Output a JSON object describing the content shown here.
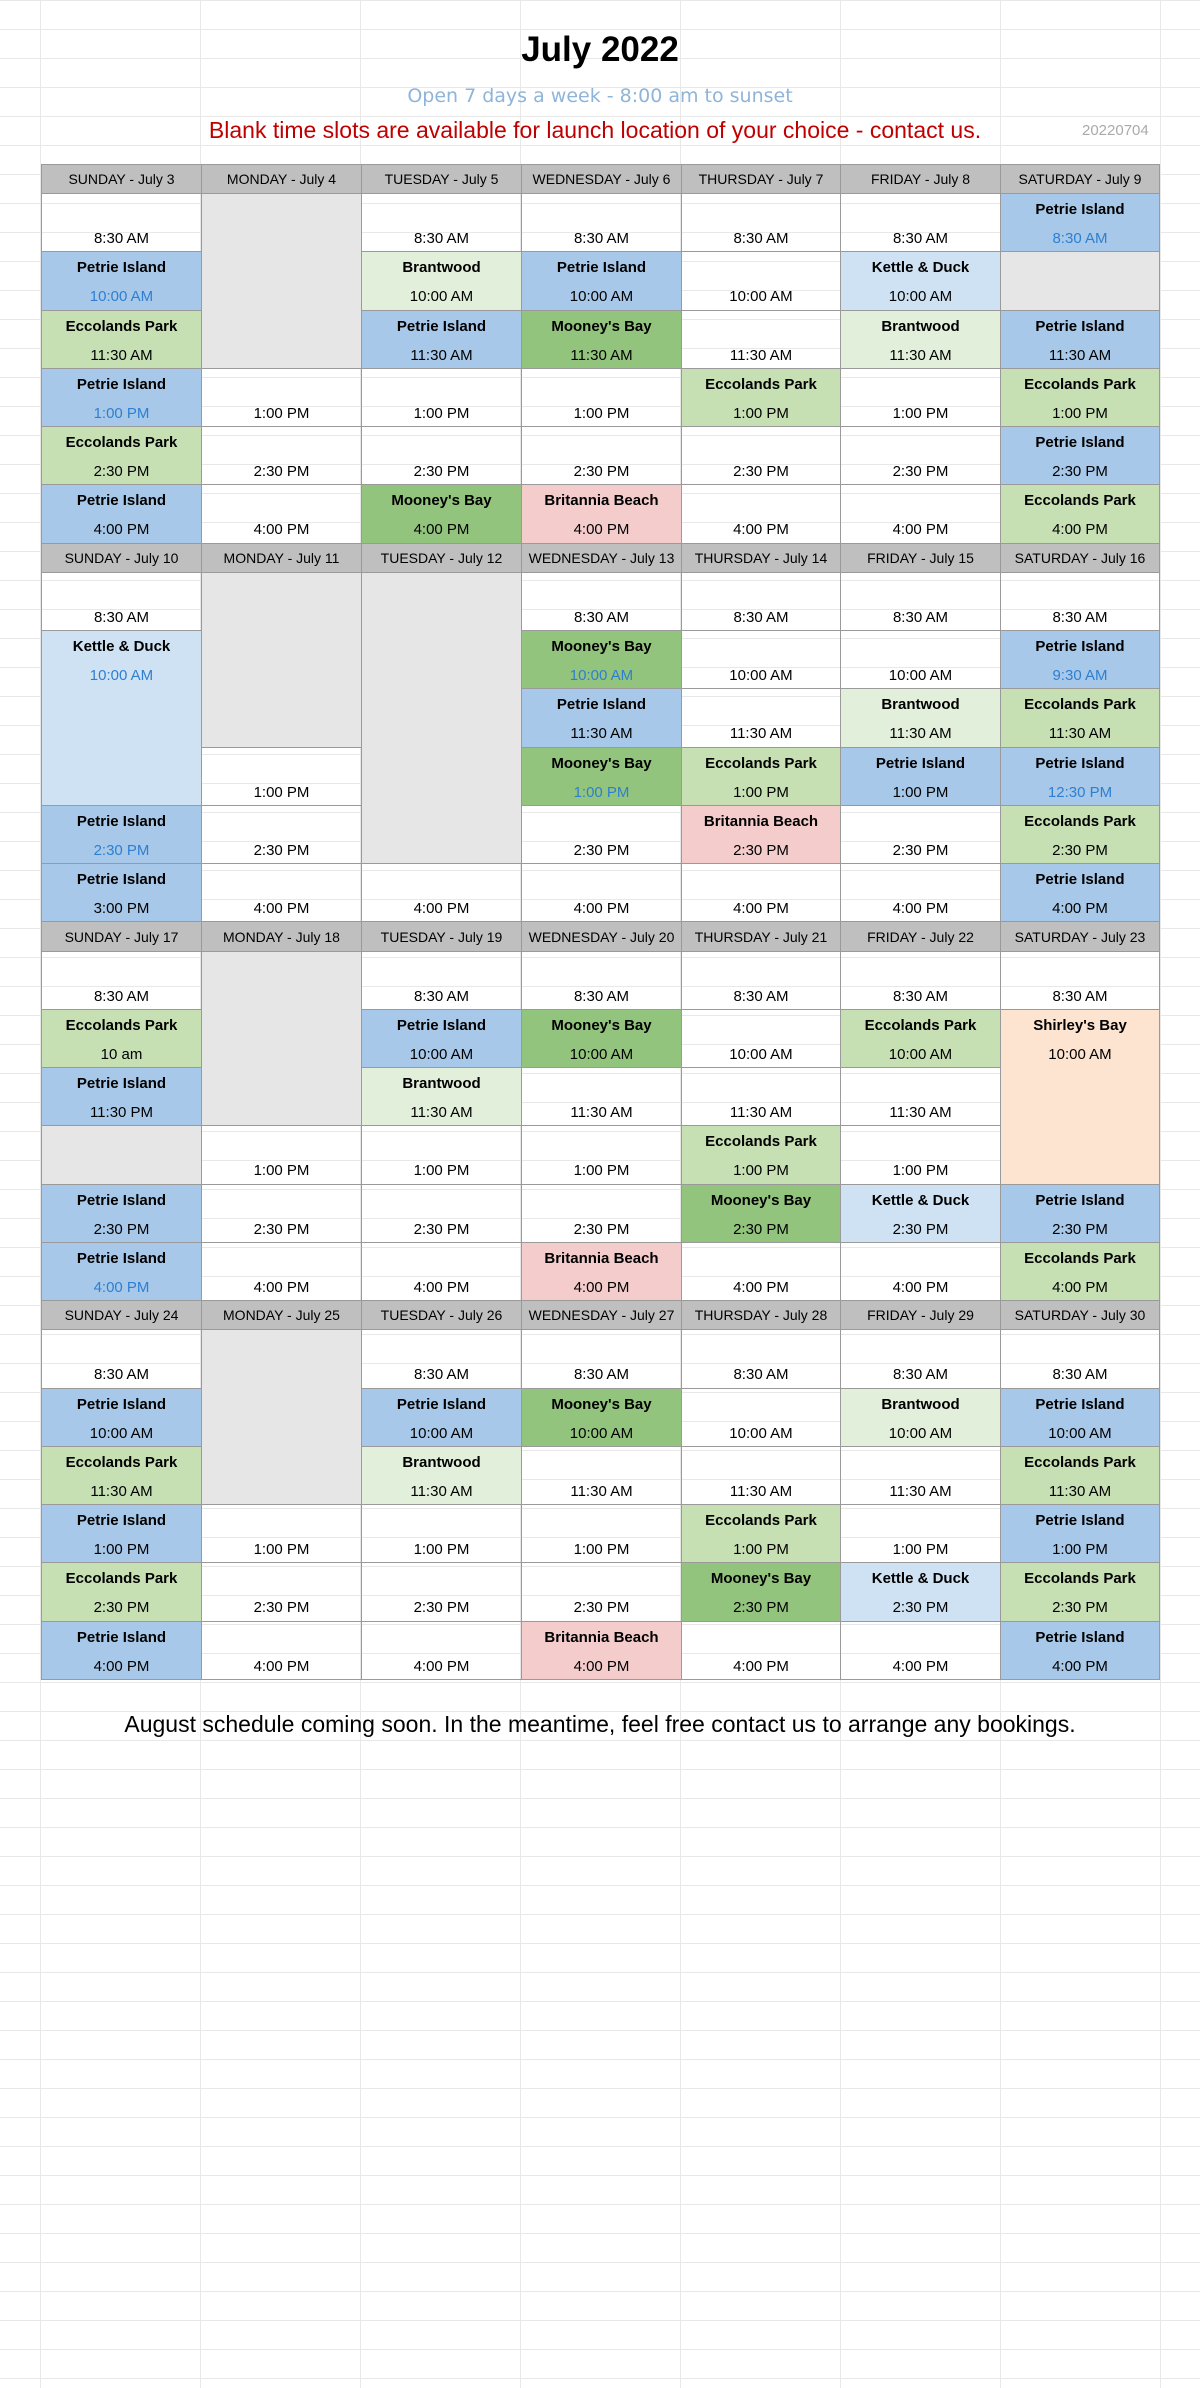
{
  "title": "July 2022",
  "subtitle": "Open  7 days a week - 8:00 am to sunset",
  "notice": "Blank time slots are available for launch location of your choice - contact us.",
  "code": "20220704",
  "footer": "August schedule coming soon. In the meantime, feel free contact us to arrange any bookings.",
  "legend_colors": {
    "Petrie Island": "#a7c8e8",
    "Eccolands Park": "#c6e0b4",
    "Brantwood": "#e2efda",
    "Mooney's Bay": "#93c47d",
    "Kettle & Duck": "#cfe2f3",
    "Britannia Beach": "#f4cccc",
    "Shirley's Bay": "#fde4d0",
    "blocked": "#e6e6e6",
    "highlight_time": "#2e7fd1"
  },
  "weeks": [
    {
      "headers": [
        "SUNDAY - July 3",
        "MONDAY - July 4",
        "TUESDAY - July 5",
        "WEDNESDAY - July 6",
        "THURSDAY - July 7",
        "FRIDAY - July 8",
        "SATURDAY - July 9"
      ],
      "rows": [
        [
          {
            "time": "8:30 AM"
          },
          {
            "blank": true,
            "rs": 3
          },
          {
            "time": "8:30 AM"
          },
          {
            "time": "8:30 AM"
          },
          {
            "time": "8:30 AM"
          },
          {
            "time": "8:30 AM"
          },
          {
            "loc": "Petrie Island",
            "time": "8:30 AM",
            "c": "pi",
            "hl": true
          }
        ],
        [
          {
            "loc": "Petrie Island",
            "time": "10:00 AM",
            "c": "pi",
            "hl": true
          },
          {
            "loc": "Brantwood",
            "time": "10:00 AM",
            "c": "bw"
          },
          {
            "loc": "Petrie Island",
            "time": "10:00 AM",
            "c": "pi"
          },
          {
            "time": "10:00 AM"
          },
          {
            "loc": "Kettle & Duck",
            "time": "10:00 AM",
            "c": "kd"
          },
          {
            "blank": true
          }
        ],
        [
          {
            "loc": "Eccolands Park",
            "time": "11:30 AM",
            "c": "ep"
          },
          {
            "loc": "Petrie Island",
            "time": "11:30 AM",
            "c": "pi"
          },
          {
            "loc": "Mooney's Bay",
            "time": "11:30 AM",
            "c": "mb"
          },
          {
            "time": "11:30 AM"
          },
          {
            "loc": "Brantwood",
            "time": "11:30 AM",
            "c": "bw"
          },
          {
            "loc": "Petrie Island",
            "time": "11:30 AM",
            "c": "pi"
          }
        ],
        [
          {
            "loc": "Petrie Island",
            "time": "1:00 PM",
            "c": "pi",
            "hl": true
          },
          {
            "time": "1:00 PM"
          },
          {
            "time": "1:00 PM"
          },
          {
            "time": "1:00 PM"
          },
          {
            "loc": "Eccolands Park",
            "time": "1:00 PM",
            "c": "ep"
          },
          {
            "time": "1:00 PM"
          },
          {
            "loc": "Eccolands Park",
            "time": "1:00 PM",
            "c": "ep"
          }
        ],
        [
          {
            "loc": "Eccolands Park",
            "time": "2:30 PM",
            "c": "ep"
          },
          {
            "time": "2:30 PM"
          },
          {
            "time": "2:30 PM"
          },
          {
            "time": "2:30 PM"
          },
          {
            "time": "2:30 PM"
          },
          {
            "time": "2:30 PM"
          },
          {
            "loc": "Petrie Island",
            "time": "2:30 PM",
            "c": "pi"
          }
        ],
        [
          {
            "loc": "Petrie Island",
            "time": "4:00 PM",
            "c": "pi"
          },
          {
            "time": "4:00 PM"
          },
          {
            "loc": "Mooney's Bay",
            "time": "4:00 PM",
            "c": "mb"
          },
          {
            "loc": "Britannia Beach",
            "time": "4:00 PM",
            "c": "bb"
          },
          {
            "time": "4:00 PM"
          },
          {
            "time": "4:00 PM"
          },
          {
            "loc": "Eccolands Park",
            "time": "4:00 PM",
            "c": "ep"
          }
        ]
      ]
    },
    {
      "headers": [
        "SUNDAY - July 10",
        "MONDAY - July 11",
        "TUESDAY - July 12",
        "WEDNESDAY - July 13",
        "THURSDAY - July 14",
        "FRIDAY - July 15",
        "SATURDAY - July 16"
      ],
      "rows": [
        [
          {
            "time": "8:30 AM"
          },
          {
            "blank": true,
            "rs": 3
          },
          {
            "blank": true,
            "rs": 5
          },
          {
            "time": "8:30 AM"
          },
          {
            "time": "8:30 AM"
          },
          {
            "time": "8:30 AM"
          },
          {
            "time": "8:30 AM"
          }
        ],
        [
          {
            "loc": "Kettle & Duck",
            "time": "10:00 AM",
            "c": "kd",
            "hl": true,
            "rs": 3
          },
          {
            "loc": "Mooney's Bay",
            "time": "10:00 AM",
            "c": "mb",
            "hl": true
          },
          {
            "time": "10:00 AM"
          },
          {
            "time": "10:00 AM"
          },
          {
            "loc": "Petrie Island",
            "time": "9:30 AM",
            "c": "pi",
            "hl": true
          }
        ],
        [
          {
            "loc": "Petrie Island",
            "time": "11:30 AM",
            "c": "pi"
          },
          {
            "time": "11:30 AM"
          },
          {
            "loc": "Brantwood",
            "time": "11:30 AM",
            "c": "bw"
          },
          {
            "loc": "Eccolands Park",
            "time": "11:30 AM",
            "c": "ep"
          }
        ],
        [
          {
            "time": "1:00 PM"
          },
          {
            "loc": "Mooney's Bay",
            "time": "1:00 PM",
            "c": "mb",
            "hl": true
          },
          {
            "loc": "Eccolands Park",
            "time": "1:00 PM",
            "c": "ep"
          },
          {
            "loc": "Petrie Island",
            "time": "1:00 PM",
            "c": "pi"
          },
          {
            "loc": "Petrie Island",
            "time": "12:30 PM",
            "c": "pi",
            "hl": true
          }
        ],
        [
          {
            "loc": "Petrie Island",
            "time": "2:30 PM",
            "c": "pi",
            "hl": true
          },
          {
            "time": "2:30 PM"
          },
          {
            "time": "2:30 PM"
          },
          {
            "loc": "Britannia Beach",
            "time": "2:30 PM",
            "c": "bb"
          },
          {
            "time": "2:30 PM"
          },
          {
            "loc": "Eccolands Park",
            "time": "2:30 PM",
            "c": "ep"
          }
        ],
        [
          {
            "loc": "Petrie Island",
            "time": "3:00 PM",
            "c": "pi"
          },
          {
            "time": "4:00 PM"
          },
          {
            "time": "4:00 PM"
          },
          {
            "time": "4:00 PM"
          },
          {
            "time": "4:00 PM"
          },
          {
            "time": "4:00 PM"
          },
          {
            "loc": "Petrie Island",
            "time": "4:00 PM",
            "c": "pi"
          }
        ]
      ]
    },
    {
      "headers": [
        "SUNDAY - July 17",
        "MONDAY - July 18",
        "TUESDAY - July 19",
        "WEDNESDAY - July 20",
        "THURSDAY - July 21",
        "FRIDAY - July 22",
        "SATURDAY - July 23"
      ],
      "rows": [
        [
          {
            "time": "8:30 AM"
          },
          {
            "blank": true,
            "rs": 3
          },
          {
            "time": "8:30 AM"
          },
          {
            "time": "8:30 AM"
          },
          {
            "time": "8:30 AM"
          },
          {
            "time": "8:30 AM"
          },
          {
            "time": "8:30 AM"
          }
        ],
        [
          {
            "loc": "Eccolands Park",
            "time": "10 am",
            "c": "ep"
          },
          {
            "loc": "Petrie Island",
            "time": "10:00 AM",
            "c": "pi"
          },
          {
            "loc": "Mooney's Bay",
            "time": "10:00 AM",
            "c": "mb"
          },
          {
            "time": "10:00 AM"
          },
          {
            "loc": "Eccolands Park",
            "time": "10:00 AM",
            "c": "ep"
          },
          {
            "loc": "Shirley's Bay",
            "time": "10:00 AM",
            "c": "sb",
            "rs": 3
          }
        ],
        [
          {
            "loc": "Petrie Island",
            "time": "11:30 PM",
            "c": "pi"
          },
          {
            "loc": "Brantwood",
            "time": "11:30 AM",
            "c": "bw"
          },
          {
            "time": "11:30 AM"
          },
          {
            "time": "11:30 AM"
          },
          {
            "time": "11:30 AM"
          }
        ],
        [
          {
            "blank": true
          },
          {
            "time": "1:00 PM"
          },
          {
            "time": "1:00 PM"
          },
          {
            "time": "1:00 PM"
          },
          {
            "loc": "Eccolands Park",
            "time": "1:00 PM",
            "c": "ep"
          },
          {
            "time": "1:00 PM"
          }
        ],
        [
          {
            "loc": "Petrie Island",
            "time": "2:30 PM",
            "c": "pi"
          },
          {
            "time": "2:30 PM"
          },
          {
            "time": "2:30 PM"
          },
          {
            "time": "2:30 PM"
          },
          {
            "loc": "Mooney's Bay",
            "time": "2:30 PM",
            "c": "mb"
          },
          {
            "loc": "Kettle & Duck",
            "time": "2:30 PM",
            "c": "kd"
          },
          {
            "loc": "Petrie Island",
            "time": "2:30 PM",
            "c": "pi"
          }
        ],
        [
          {
            "loc": "Petrie Island",
            "time": "4:00 PM",
            "c": "pi",
            "hl": true
          },
          {
            "time": "4:00 PM"
          },
          {
            "time": "4:00 PM"
          },
          {
            "loc": "Britannia Beach",
            "time": "4:00 PM",
            "c": "bb"
          },
          {
            "time": "4:00 PM"
          },
          {
            "time": "4:00 PM"
          },
          {
            "loc": "Eccolands Park",
            "time": "4:00 PM",
            "c": "ep"
          }
        ]
      ]
    },
    {
      "headers": [
        "SUNDAY - July 24",
        "MONDAY - July 25",
        "TUESDAY - July 26",
        "WEDNESDAY - July 27",
        "THURSDAY - July 28",
        "FRIDAY - July 29",
        "SATURDAY - July 30"
      ],
      "rows": [
        [
          {
            "time": "8:30 AM"
          },
          {
            "blank": true,
            "rs": 3
          },
          {
            "time": "8:30 AM"
          },
          {
            "time": "8:30 AM"
          },
          {
            "time": "8:30 AM"
          },
          {
            "time": "8:30 AM"
          },
          {
            "time": "8:30 AM"
          }
        ],
        [
          {
            "loc": "Petrie Island",
            "time": "10:00 AM",
            "c": "pi"
          },
          {
            "loc": "Petrie Island",
            "time": "10:00 AM",
            "c": "pi"
          },
          {
            "loc": "Mooney's Bay",
            "time": "10:00 AM",
            "c": "mb"
          },
          {
            "time": "10:00 AM"
          },
          {
            "loc": "Brantwood",
            "time": "10:00 AM",
            "c": "bw"
          },
          {
            "loc": "Petrie Island",
            "time": "10:00 AM",
            "c": "pi"
          }
        ],
        [
          {
            "loc": "Eccolands Park",
            "time": "11:30 AM",
            "c": "ep"
          },
          {
            "loc": "Brantwood",
            "time": "11:30 AM",
            "c": "bw"
          },
          {
            "time": "11:30 AM"
          },
          {
            "time": "11:30 AM"
          },
          {
            "time": "11:30 AM"
          },
          {
            "loc": "Eccolands Park",
            "time": "11:30 AM",
            "c": "ep"
          }
        ],
        [
          {
            "loc": "Petrie Island",
            "time": "1:00 PM",
            "c": "pi"
          },
          {
            "time": "1:00 PM"
          },
          {
            "time": "1:00 PM"
          },
          {
            "time": "1:00 PM"
          },
          {
            "loc": "Eccolands Park",
            "time": "1:00 PM",
            "c": "ep"
          },
          {
            "time": "1:00 PM"
          },
          {
            "loc": "Petrie Island",
            "time": "1:00 PM",
            "c": "pi"
          }
        ],
        [
          {
            "loc": "Eccolands Park",
            "time": "2:30 PM",
            "c": "ep"
          },
          {
            "time": "2:30 PM"
          },
          {
            "time": "2:30 PM"
          },
          {
            "time": "2:30 PM"
          },
          {
            "loc": "Mooney's Bay",
            "time": "2:30 PM",
            "c": "mb"
          },
          {
            "loc": "Kettle & Duck",
            "time": "2:30 PM",
            "c": "kd"
          },
          {
            "loc": "Eccolands Park",
            "time": "2:30 PM",
            "c": "ep"
          }
        ],
        [
          {
            "loc": "Petrie Island",
            "time": "4:00 PM",
            "c": "pi"
          },
          {
            "time": "4:00 PM"
          },
          {
            "time": "4:00 PM"
          },
          {
            "loc": "Britannia Beach",
            "time": "4:00 PM",
            "c": "bb"
          },
          {
            "time": "4:00 PM"
          },
          {
            "time": "4:00 PM"
          },
          {
            "loc": "Petrie Island",
            "time": "4:00 PM",
            "c": "pi"
          }
        ]
      ]
    }
  ]
}
